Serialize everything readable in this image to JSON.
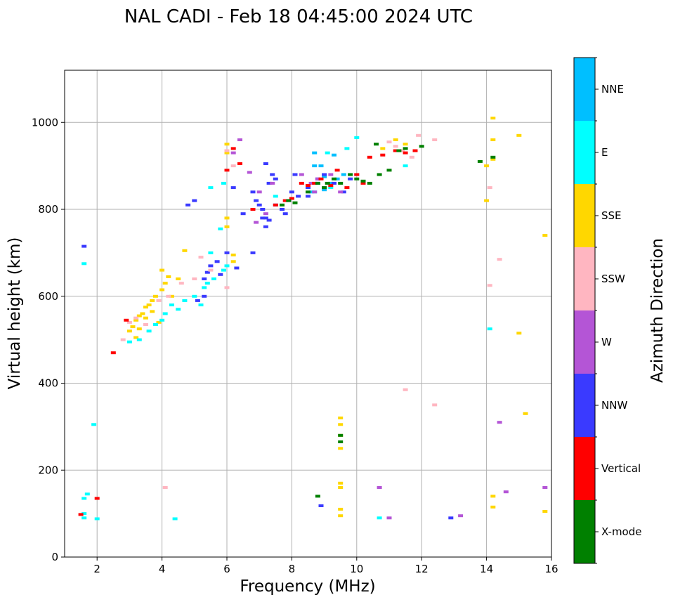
{
  "chart_data": {
    "type": "scatter",
    "title": "NAL CADI - Feb 18 04:45:00 2024 UTC",
    "xlabel": "Frequency (MHz)",
    "ylabel": "Virtual height (km)",
    "xlim": [
      1,
      16
    ],
    "ylim": [
      0,
      1120
    ],
    "xticks": [
      "2",
      "4",
      "6",
      "8",
      "10",
      "12",
      "14",
      "16"
    ],
    "yticks": [
      "0",
      "200",
      "400",
      "600",
      "800",
      "1000"
    ],
    "grid": true,
    "colorbar": {
      "label": "Azimuth Direction",
      "categories": [
        {
          "name": "X-mode",
          "color": "#008000"
        },
        {
          "name": "Vertical",
          "color": "#ff0000"
        },
        {
          "name": "NNW",
          "color": "#3a3aff"
        },
        {
          "name": "W",
          "color": "#b455d6"
        },
        {
          "name": "SSW",
          "color": "#ffb6c1"
        },
        {
          "name": "SSE",
          "color": "#ffd700"
        },
        {
          "name": "E",
          "color": "#00ffff"
        },
        {
          "name": "NNE",
          "color": "#00bfff"
        }
      ]
    },
    "series": [
      {
        "name": "SSE",
        "points": [
          [
            3.0,
            520
          ],
          [
            3.1,
            530
          ],
          [
            3.2,
            545
          ],
          [
            3.3,
            555
          ],
          [
            3.4,
            560
          ],
          [
            3.5,
            575
          ],
          [
            3.6,
            580
          ],
          [
            3.7,
            590
          ],
          [
            3.8,
            600
          ],
          [
            4.0,
            615
          ],
          [
            4.1,
            630
          ],
          [
            4.2,
            645
          ],
          [
            4.0,
            660
          ],
          [
            3.2,
            505
          ],
          [
            3.3,
            525
          ],
          [
            3.5,
            550
          ],
          [
            3.7,
            565
          ],
          [
            3.9,
            540
          ],
          [
            4.3,
            600
          ],
          [
            4.5,
            640
          ],
          [
            4.7,
            705
          ],
          [
            6.2,
            680
          ],
          [
            6.2,
            695
          ],
          [
            6.0,
            760
          ],
          [
            6.0,
            780
          ],
          [
            6.0,
            930
          ],
          [
            6.0,
            950
          ],
          [
            9.5,
            320
          ],
          [
            9.5,
            305
          ],
          [
            9.5,
            280
          ],
          [
            9.5,
            250
          ],
          [
            9.5,
            170
          ],
          [
            9.5,
            160
          ],
          [
            9.5,
            110
          ],
          [
            9.5,
            95
          ],
          [
            14.2,
            1010
          ],
          [
            14.2,
            960
          ],
          [
            15.0,
            970
          ],
          [
            14.0,
            900
          ],
          [
            14.0,
            820
          ],
          [
            14.2,
            915
          ],
          [
            14.2,
            140
          ],
          [
            14.2,
            115
          ],
          [
            15.0,
            515
          ],
          [
            15.2,
            330
          ],
          [
            15.8,
            740
          ],
          [
            15.8,
            105
          ],
          [
            11.5,
            950
          ],
          [
            11.2,
            960
          ],
          [
            10.8,
            940
          ]
        ]
      },
      {
        "name": "E",
        "points": [
          [
            3.0,
            495
          ],
          [
            3.3,
            500
          ],
          [
            3.6,
            520
          ],
          [
            3.8,
            535
          ],
          [
            4.0,
            545
          ],
          [
            4.1,
            560
          ],
          [
            4.3,
            580
          ],
          [
            4.5,
            570
          ],
          [
            4.7,
            590
          ],
          [
            5.0,
            600
          ],
          [
            5.2,
            580
          ],
          [
            5.3,
            620
          ],
          [
            5.4,
            630
          ],
          [
            5.6,
            640
          ],
          [
            5.9,
            660
          ],
          [
            6.0,
            670
          ],
          [
            5.5,
            700
          ],
          [
            5.8,
            755
          ],
          [
            5.5,
            850
          ],
          [
            5.9,
            860
          ],
          [
            7.5,
            830
          ],
          [
            1.6,
            675
          ],
          [
            1.6,
            135
          ],
          [
            1.7,
            145
          ],
          [
            1.6,
            100
          ],
          [
            1.6,
            90
          ],
          [
            1.9,
            305
          ],
          [
            2.0,
            88
          ],
          [
            4.4,
            88
          ],
          [
            9.0,
            880
          ],
          [
            9.2,
            850
          ],
          [
            9.7,
            940
          ],
          [
            10.0,
            965
          ],
          [
            10.7,
            90
          ],
          [
            11.5,
            900
          ],
          [
            14.1,
            525
          ],
          [
            8.5,
            855
          ],
          [
            8.7,
            840
          ],
          [
            9.1,
            930
          ]
        ]
      },
      {
        "name": "NNE",
        "points": [
          [
            8.7,
            930
          ],
          [
            8.7,
            900
          ],
          [
            8.8,
            860
          ],
          [
            9.0,
            875
          ],
          [
            9.2,
            860
          ],
          [
            9.4,
            870
          ],
          [
            9.6,
            880
          ],
          [
            9.0,
            845
          ],
          [
            8.6,
            840
          ],
          [
            9.3,
            925
          ],
          [
            8.9,
            900
          ]
        ]
      },
      {
        "name": "NNW",
        "points": [
          [
            5.3,
            640
          ],
          [
            5.4,
            655
          ],
          [
            5.5,
            670
          ],
          [
            5.7,
            680
          ],
          [
            5.8,
            650
          ],
          [
            6.0,
            700
          ],
          [
            6.3,
            665
          ],
          [
            6.5,
            790
          ],
          [
            6.8,
            840
          ],
          [
            6.9,
            820
          ],
          [
            7.0,
            810
          ],
          [
            7.1,
            800
          ],
          [
            7.2,
            780
          ],
          [
            7.3,
            860
          ],
          [
            7.4,
            880
          ],
          [
            7.5,
            810
          ],
          [
            7.7,
            800
          ],
          [
            7.9,
            820
          ],
          [
            8.0,
            840
          ],
          [
            8.2,
            830
          ],
          [
            8.5,
            850
          ],
          [
            8.8,
            870
          ],
          [
            9.0,
            880
          ],
          [
            9.3,
            860
          ],
          [
            9.6,
            840
          ],
          [
            9.8,
            870
          ],
          [
            10.0,
            880
          ],
          [
            5.1,
            590
          ],
          [
            5.3,
            600
          ],
          [
            5.0,
            820
          ],
          [
            4.8,
            810
          ],
          [
            7.1,
            780
          ],
          [
            7.3,
            775
          ],
          [
            8.5,
            830
          ],
          [
            7.8,
            790
          ],
          [
            7.2,
            905
          ],
          [
            7.5,
            870
          ],
          [
            6.8,
            700
          ],
          [
            1.6,
            715
          ],
          [
            12.9,
            90
          ],
          [
            8.9,
            118
          ],
          [
            7.2,
            760
          ],
          [
            6.2,
            850
          ],
          [
            8.1,
            880
          ]
        ]
      },
      {
        "name": "W",
        "points": [
          [
            6.4,
            960
          ],
          [
            6.7,
            885
          ],
          [
            7.0,
            840
          ],
          [
            7.4,
            860
          ],
          [
            8.3,
            880
          ],
          [
            8.6,
            860
          ],
          [
            8.7,
            840
          ],
          [
            8.8,
            870
          ],
          [
            9.0,
            850
          ],
          [
            9.2,
            880
          ],
          [
            9.5,
            840
          ],
          [
            6.9,
            770
          ],
          [
            7.2,
            790
          ],
          [
            10.7,
            160
          ],
          [
            14.4,
            310
          ],
          [
            14.6,
            150
          ],
          [
            15.8,
            160
          ],
          [
            13.2,
            95
          ],
          [
            11.0,
            90
          ],
          [
            6.2,
            930
          ]
        ]
      },
      {
        "name": "SSW",
        "points": [
          [
            2.8,
            500
          ],
          [
            3.0,
            540
          ],
          [
            3.2,
            550
          ],
          [
            3.5,
            535
          ],
          [
            3.9,
            590
          ],
          [
            4.2,
            600
          ],
          [
            4.6,
            630
          ],
          [
            5.0,
            640
          ],
          [
            5.2,
            690
          ],
          [
            5.5,
            660
          ],
          [
            6.0,
            620
          ],
          [
            11.0,
            955
          ],
          [
            11.2,
            945
          ],
          [
            11.4,
            935
          ],
          [
            11.7,
            920
          ],
          [
            11.9,
            970
          ],
          [
            12.4,
            960
          ],
          [
            14.1,
            850
          ],
          [
            14.1,
            625
          ],
          [
            14.4,
            685
          ],
          [
            11.5,
            385
          ],
          [
            12.4,
            350
          ],
          [
            4.1,
            160
          ],
          [
            6.2,
            900
          ],
          [
            6.0,
            935
          ]
        ]
      },
      {
        "name": "Vertical",
        "points": [
          [
            2.0,
            135
          ],
          [
            2.5,
            470
          ],
          [
            2.9,
            545
          ],
          [
            6.4,
            905
          ],
          [
            6.0,
            890
          ],
          [
            6.8,
            800
          ],
          [
            7.5,
            810
          ],
          [
            7.8,
            820
          ],
          [
            8.0,
            825
          ],
          [
            8.3,
            860
          ],
          [
            8.5,
            855
          ],
          [
            8.7,
            860
          ],
          [
            8.9,
            870
          ],
          [
            9.2,
            855
          ],
          [
            9.4,
            890
          ],
          [
            9.7,
            850
          ],
          [
            10.0,
            880
          ],
          [
            10.2,
            860
          ],
          [
            10.4,
            920
          ],
          [
            10.8,
            925
          ],
          [
            11.2,
            935
          ],
          [
            11.5,
            930
          ],
          [
            11.8,
            935
          ],
          [
            1.5,
            98
          ],
          [
            6.2,
            940
          ]
        ]
      },
      {
        "name": "X-mode",
        "points": [
          [
            7.7,
            810
          ],
          [
            7.9,
            820
          ],
          [
            8.1,
            815
          ],
          [
            8.5,
            840
          ],
          [
            8.8,
            860
          ],
          [
            9.0,
            850
          ],
          [
            9.3,
            870
          ],
          [
            9.5,
            860
          ],
          [
            9.8,
            880
          ],
          [
            10.0,
            870
          ],
          [
            10.2,
            865
          ],
          [
            10.4,
            860
          ],
          [
            10.7,
            880
          ],
          [
            11.0,
            890
          ],
          [
            11.3,
            935
          ],
          [
            11.5,
            940
          ],
          [
            12.0,
            945
          ],
          [
            10.6,
            950
          ],
          [
            13.8,
            910
          ],
          [
            9.5,
            280
          ],
          [
            9.5,
            265
          ],
          [
            8.8,
            140
          ],
          [
            14.2,
            920
          ],
          [
            9.1,
            860
          ]
        ]
      }
    ]
  }
}
